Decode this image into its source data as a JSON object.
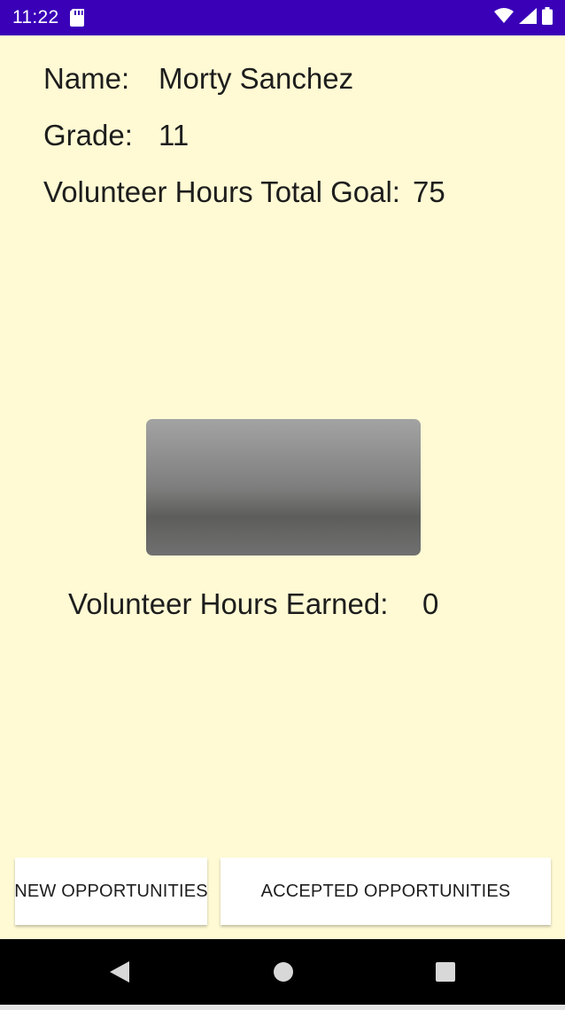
{
  "status_bar": {
    "time": "11:22",
    "icons": [
      "sd-card-icon",
      "wifi-icon",
      "cellular-signal-icon",
      "battery-icon"
    ],
    "background_color": "#3A00B8"
  },
  "profile": {
    "name_label": "Name:",
    "name_value": "Morty Sanchez",
    "grade_label": "Grade:",
    "grade_value": "11",
    "goal_label": "Volunteer Hours Total Goal:",
    "goal_value": "75",
    "earned_label": "Volunteer Hours Earned:",
    "earned_value": "0"
  },
  "buttons": {
    "new_opportunities": "NEW OPPORTUNITIES",
    "accepted_opportunities": "ACCEPTED OPPORTUNITIES"
  },
  "nav_bar": {
    "icons": [
      "back-icon",
      "home-icon",
      "recents-icon"
    ]
  },
  "colors": {
    "app_background": "#FFFAD4",
    "button_background": "#FFFFFF",
    "nav_background": "#000000"
  }
}
